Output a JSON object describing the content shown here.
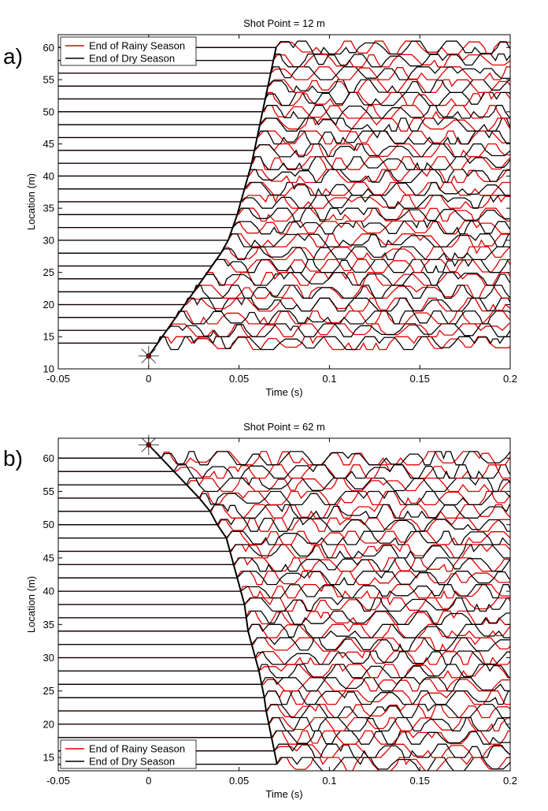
{
  "colors": {
    "rainy": "#e00000",
    "dry": "#000000",
    "axis": "#000000",
    "background": "#ffffff"
  },
  "legend_line_style": "solid",
  "chart_data": [
    {
      "panel_label": "a)",
      "type": "line",
      "title": "Shot Point = 12 m",
      "xlabel": "Time (s)",
      "ylabel": "Location (m)",
      "xlim": [
        -0.05,
        0.2
      ],
      "ylim": [
        10,
        62
      ],
      "xticks": [
        -0.05,
        0,
        0.05,
        0.1,
        0.15,
        0.2
      ],
      "xtick_labels": [
        "-0.05",
        "0",
        "0.05",
        "0.1",
        "0.15",
        "0.2"
      ],
      "yticks": [
        10,
        15,
        20,
        25,
        30,
        35,
        40,
        45,
        50,
        55,
        60
      ],
      "ytick_labels": [
        "10",
        "15",
        "20",
        "25",
        "30",
        "35",
        "40",
        "45",
        "50",
        "55",
        "60"
      ],
      "legend_position": "top-left",
      "series": [
        {
          "name": "End of Rainy Season",
          "color": "#e00000"
        },
        {
          "name": "End of Dry Season",
          "color": "#000000"
        }
      ],
      "source_marker": {
        "time": 0,
        "location": 12
      },
      "trace_locations": [
        14,
        16,
        18,
        20,
        22,
        24,
        26,
        28,
        30,
        32,
        34,
        36,
        38,
        40,
        42,
        44,
        46,
        48,
        50,
        52,
        54,
        56,
        58,
        60
      ],
      "first_break_picks": {
        "location": [
          12,
          14,
          16,
          18,
          20,
          22,
          24,
          26,
          28,
          30,
          32,
          34,
          36,
          38,
          40,
          42,
          44,
          46,
          48,
          50,
          52,
          54,
          56,
          58,
          60
        ],
        "time": [
          0.0,
          0.005,
          0.01,
          0.015,
          0.02,
          0.025,
          0.03,
          0.035,
          0.04,
          0.044,
          0.0465,
          0.049,
          0.051,
          0.053,
          0.055,
          0.057,
          0.0585,
          0.06,
          0.0615,
          0.063,
          0.0645,
          0.066,
          0.0675,
          0.069,
          0.0705
        ]
      }
    },
    {
      "panel_label": "b)",
      "type": "line",
      "title": "Shot Point = 62 m",
      "xlabel": "Time (s)",
      "ylabel": "Location (m)",
      "xlim": [
        -0.05,
        0.2
      ],
      "ylim": [
        13,
        63
      ],
      "xticks": [
        -0.05,
        0,
        0.05,
        0.1,
        0.15,
        0.2
      ],
      "xtick_labels": [
        "-0.05",
        "0",
        "0.05",
        "0.1",
        "0.15",
        "0.2"
      ],
      "yticks": [
        15,
        20,
        25,
        30,
        35,
        40,
        45,
        50,
        55,
        60
      ],
      "ytick_labels": [
        "15",
        "20",
        "25",
        "30",
        "35",
        "40",
        "45",
        "50",
        "55",
        "60"
      ],
      "legend_position": "bottom-left",
      "series": [
        {
          "name": "End of Rainy Season",
          "color": "#e00000"
        },
        {
          "name": "End of Dry Season",
          "color": "#000000"
        }
      ],
      "source_marker": {
        "time": 0,
        "location": 62
      },
      "trace_locations": [
        14,
        16,
        18,
        20,
        22,
        24,
        26,
        28,
        30,
        32,
        34,
        36,
        38,
        40,
        42,
        44,
        46,
        48,
        50,
        52,
        54,
        56,
        58,
        60
      ],
      "first_break_picks": {
        "location": [
          62,
          60,
          58,
          56,
          54,
          52,
          50,
          48,
          46,
          44,
          42,
          40,
          38,
          36,
          34,
          32,
          30,
          28,
          26,
          24,
          22,
          20,
          18,
          16,
          14
        ],
        "time": [
          0.0,
          0.007,
          0.014,
          0.021,
          0.028,
          0.034,
          0.038,
          0.043,
          0.045,
          0.047,
          0.049,
          0.051,
          0.053,
          0.054,
          0.055,
          0.057,
          0.059,
          0.061,
          0.0625,
          0.064,
          0.065,
          0.0665,
          0.068,
          0.0695,
          0.071
        ]
      }
    }
  ]
}
